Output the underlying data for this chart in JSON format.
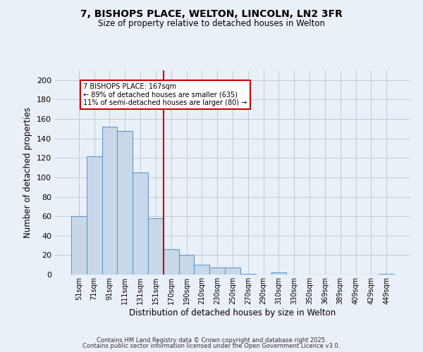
{
  "title_line1": "7, BISHOPS PLACE, WELTON, LINCOLN, LN2 3FR",
  "title_line2": "Size of property relative to detached houses in Welton",
  "xlabel": "Distribution of detached houses by size in Welton",
  "ylabel": "Number of detached properties",
  "categories": [
    "51sqm",
    "71sqm",
    "91sqm",
    "111sqm",
    "131sqm",
    "151sqm",
    "170sqm",
    "190sqm",
    "210sqm",
    "230sqm",
    "250sqm",
    "270sqm",
    "290sqm",
    "310sqm",
    "330sqm",
    "350sqm",
    "369sqm",
    "389sqm",
    "409sqm",
    "429sqm",
    "449sqm"
  ],
  "values": [
    60,
    122,
    152,
    148,
    105,
    58,
    26,
    20,
    10,
    7,
    7,
    1,
    0,
    2,
    0,
    0,
    0,
    0,
    0,
    0,
    1
  ],
  "bar_color": "#c8d8e8",
  "bar_edge_color": "#5b9bd5",
  "bar_edge_width": 0.8,
  "vline_color": "#cc0000",
  "annotation_text": "7 BISHOPS PLACE: 167sqm\n← 89% of detached houses are smaller (635)\n11% of semi-detached houses are larger (80) →",
  "annotation_box_color": "#ffffff",
  "annotation_box_edge_color": "#cc0000",
  "ylim": [
    0,
    210
  ],
  "yticks": [
    0,
    20,
    40,
    60,
    80,
    100,
    120,
    140,
    160,
    180,
    200
  ],
  "bg_color": "#eaf0f8",
  "grid_color": "#b0bcc8",
  "footer_line1": "Contains HM Land Registry data © Crown copyright and database right 2025.",
  "footer_line2": "Contains public sector information licensed under the Open Government Licence v3.0."
}
